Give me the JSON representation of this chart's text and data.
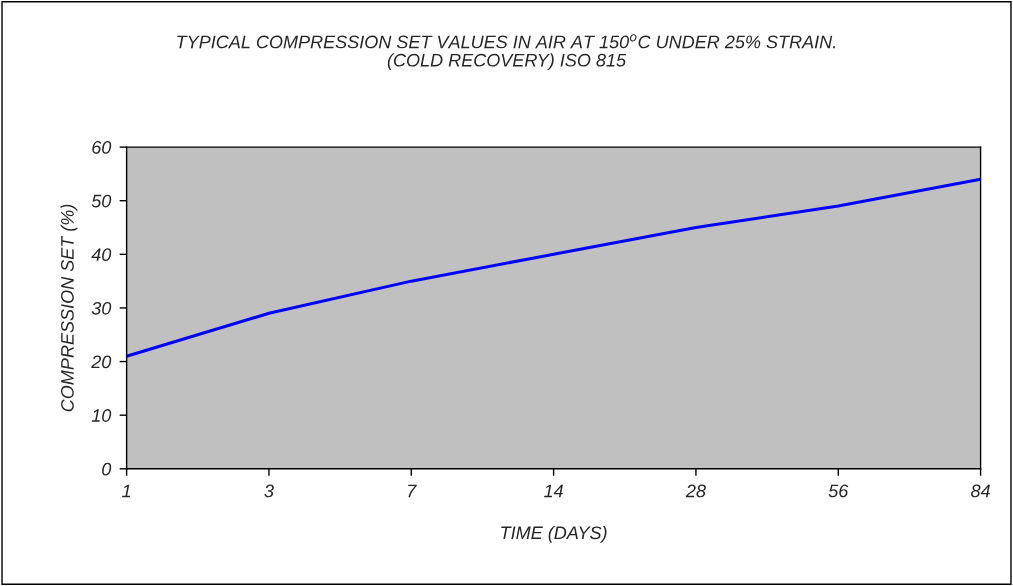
{
  "chart_data": {
    "type": "line",
    "title": "TYPICAL COMPRESSION SET VALUES IN AIR AT 150$^{o}$C UNDER 25% STRAIN.\n(COLD RECOVERY) ISO 815",
    "xlabel": "TIME (DAYS)",
    "ylabel": "COMPRESSION SET (%)",
    "categories": [
      "1",
      "3",
      "7",
      "14",
      "28",
      "56",
      "84"
    ],
    "series": [
      {
        "color": "#0000ff",
        "values": [
          21,
          29,
          35,
          40,
          45,
          49,
          54
        ]
      }
    ],
    "ylim": [
      0,
      60
    ],
    "yticks": [
      0,
      10,
      20,
      30,
      40,
      50,
      60
    ],
    "grid": false,
    "marker": "none",
    "line_style": "solid"
  }
}
